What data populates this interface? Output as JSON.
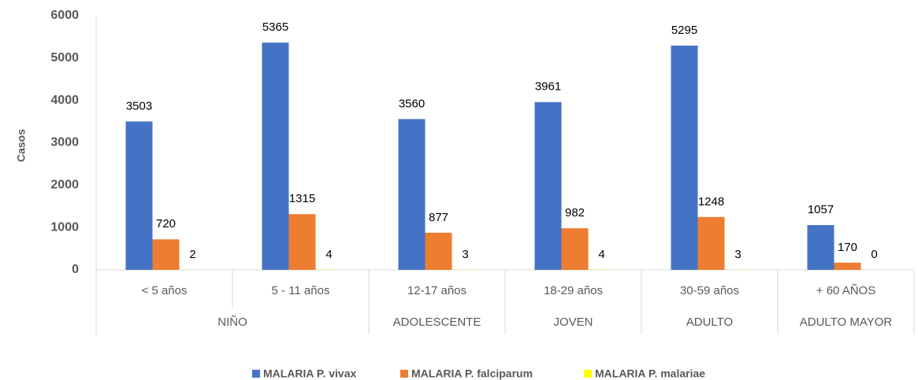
{
  "chart_data": {
    "type": "bar",
    "y_label": "Casos",
    "categories": [
      "< 5 años",
      "5 - 11 años",
      "12-17 años",
      "18-29 años",
      "30-59 años",
      "+ 60 AÑOS"
    ],
    "groups": [
      "NIÑO",
      "NIÑO",
      "ADOLESCENTE",
      "JOVEN",
      "ADULTO",
      "ADULTO MAYOR"
    ],
    "series": [
      {
        "name": "MALARIA P. vivax",
        "color": "#4472c4",
        "values": [
          3503,
          5365,
          3560,
          3961,
          5295,
          1057
        ]
      },
      {
        "name": "MALARIA P. falciparum",
        "color": "#ed7d31",
        "values": [
          720,
          1315,
          877,
          982,
          1248,
          170
        ]
      },
      {
        "name": "MALARIA P. malariae",
        "color": "#ffff00",
        "values": [
          2,
          4,
          3,
          4,
          3,
          0
        ]
      }
    ],
    "ylim": [
      0,
      6000
    ],
    "yticks": [
      0,
      1000,
      2000,
      3000,
      4000,
      5000,
      6000
    ],
    "grid": false,
    "legend": "bottom"
  }
}
